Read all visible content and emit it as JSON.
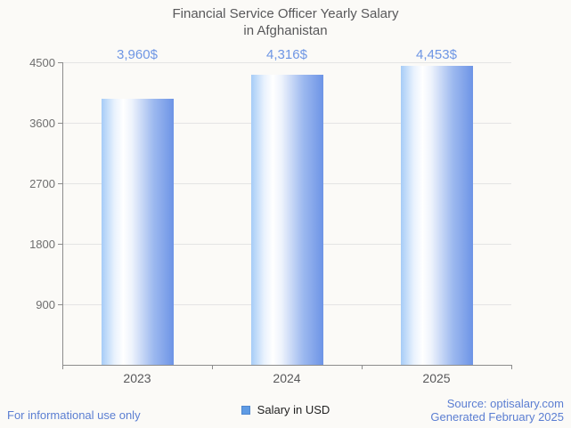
{
  "title": {
    "line1": "Financial Service Officer Yearly Salary",
    "line2": "in Afghanistan"
  },
  "chart_data": {
    "type": "bar",
    "title": "Financial Service Officer Yearly Salary in Afghanistan",
    "categories": [
      "2023",
      "2024",
      "2025"
    ],
    "series": [
      {
        "name": "Salary in USD",
        "values": [
          3960,
          4316,
          4453
        ],
        "value_labels": [
          "3,960$",
          "4,316$",
          "4,453$"
        ]
      }
    ],
    "xlabel": "",
    "ylabel": "",
    "ylim": [
      0,
      4500
    ],
    "yticks": [
      900,
      1800,
      2700,
      3600,
      4500
    ],
    "grid": true,
    "legend_position": "bottom"
  },
  "legend": {
    "items": [
      {
        "label": "Salary in USD",
        "swatch_color": "#5f9be4"
      }
    ]
  },
  "footer": {
    "disclaimer": "For informational use only",
    "source": "Source: optisalary.com",
    "generated": "Generated February 2025"
  },
  "colors": {
    "bar_gradient_left": "#a6ccf7",
    "bar_gradient_middle": "#ffffff",
    "bar_gradient_right": "#6d94e6",
    "value_label": "#6e96e4",
    "title_text": "#58585a",
    "axis_line": "#8c8c8c",
    "grid_line": "#e4e4e4",
    "y_tick_label": "#6f6f6f",
    "category_label": "#58585a",
    "legend_text": "#1f1f1f",
    "footer_text": "#5b7ed2",
    "background": "#fbfaf7"
  }
}
